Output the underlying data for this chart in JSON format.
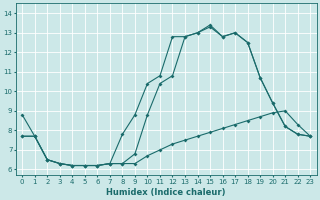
{
  "xlabel": "Humidex (Indice chaleur)",
  "bg_color": "#cce8e8",
  "line_color": "#1a6b6b",
  "grid_color": "#ffffff",
  "xlim": [
    -0.5,
    23.5
  ],
  "ylim": [
    5.7,
    14.5
  ],
  "xticks": [
    0,
    1,
    2,
    3,
    4,
    5,
    6,
    7,
    8,
    9,
    10,
    11,
    12,
    13,
    14,
    15,
    16,
    17,
    18,
    19,
    20,
    21,
    22,
    23
  ],
  "yticks": [
    6,
    7,
    8,
    9,
    10,
    11,
    12,
    13,
    14
  ],
  "line1_x": [
    0,
    1,
    2,
    3,
    4,
    5,
    6,
    7,
    8,
    9,
    10,
    11,
    12,
    13,
    14,
    15,
    16,
    17,
    18,
    19,
    20,
    21,
    22,
    23
  ],
  "line1_y": [
    8.8,
    7.7,
    6.5,
    6.3,
    6.2,
    6.2,
    6.2,
    6.3,
    7.8,
    8.8,
    10.4,
    10.8,
    12.8,
    12.8,
    13.0,
    13.4,
    12.8,
    13.0,
    12.5,
    10.7,
    9.4,
    8.2,
    7.8,
    7.7
  ],
  "line2_x": [
    0,
    1,
    2,
    3,
    4,
    5,
    6,
    7,
    8,
    9,
    10,
    11,
    12,
    13,
    14,
    15,
    16,
    17,
    18,
    19,
    20,
    21,
    22,
    23
  ],
  "line2_y": [
    7.7,
    7.7,
    6.5,
    6.3,
    6.2,
    6.2,
    6.2,
    6.3,
    6.3,
    6.8,
    8.8,
    10.4,
    10.8,
    12.8,
    13.0,
    13.3,
    12.8,
    13.0,
    12.5,
    10.7,
    9.4,
    8.2,
    7.8,
    7.7
  ],
  "line3_x": [
    0,
    1,
    2,
    3,
    4,
    5,
    6,
    7,
    8,
    9,
    10,
    11,
    12,
    13,
    14,
    15,
    16,
    17,
    18,
    19,
    20,
    21,
    22,
    23
  ],
  "line3_y": [
    7.7,
    7.7,
    6.5,
    6.3,
    6.2,
    6.2,
    6.2,
    6.3,
    6.3,
    6.3,
    6.7,
    7.0,
    7.3,
    7.5,
    7.7,
    7.9,
    8.1,
    8.3,
    8.5,
    8.7,
    8.9,
    9.0,
    8.3,
    7.7
  ]
}
